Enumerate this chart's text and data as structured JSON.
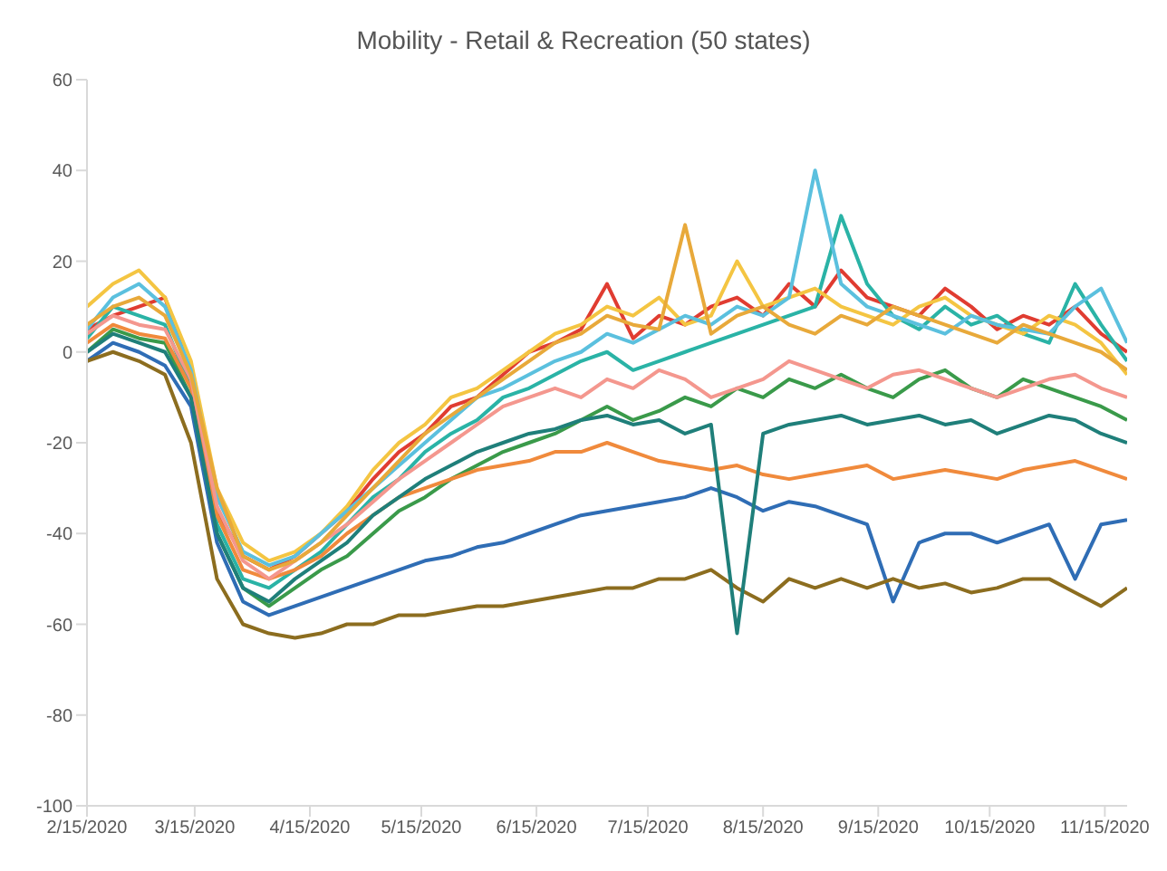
{
  "chart_data": {
    "type": "line",
    "title": "Mobility - Retail & Recreation (50 states)",
    "x": [
      "2020-02-15",
      "2020-02-22",
      "2020-02-29",
      "2020-03-07",
      "2020-03-14",
      "2020-03-21",
      "2020-03-28",
      "2020-04-04",
      "2020-04-11",
      "2020-04-18",
      "2020-04-25",
      "2020-05-02",
      "2020-05-09",
      "2020-05-16",
      "2020-05-23",
      "2020-05-30",
      "2020-06-06",
      "2020-06-13",
      "2020-06-20",
      "2020-06-27",
      "2020-07-04",
      "2020-07-11",
      "2020-07-18",
      "2020-07-25",
      "2020-08-01",
      "2020-08-08",
      "2020-08-15",
      "2020-08-22",
      "2020-08-29",
      "2020-09-05",
      "2020-09-12",
      "2020-09-19",
      "2020-09-26",
      "2020-10-03",
      "2020-10-10",
      "2020-10-17",
      "2020-10-24",
      "2020-10-31",
      "2020-11-07",
      "2020-11-14",
      "2020-11-21"
    ],
    "series": [
      {
        "color": "#e03c31",
        "values": [
          5,
          8,
          10,
          12,
          -5,
          -35,
          -45,
          -48,
          -45,
          -40,
          -35,
          -28,
          -22,
          -18,
          -12,
          -10,
          -5,
          0,
          2,
          5,
          15,
          3,
          8,
          6,
          10,
          12,
          8,
          15,
          10,
          18,
          12,
          10,
          8,
          14,
          10,
          5,
          8,
          6,
          10,
          4,
          0
        ]
      },
      {
        "color": "#2ab3a6",
        "values": [
          3,
          10,
          8,
          6,
          -8,
          -38,
          -50,
          -52,
          -48,
          -44,
          -38,
          -32,
          -28,
          -22,
          -18,
          -15,
          -10,
          -8,
          -5,
          -2,
          0,
          -4,
          -2,
          0,
          2,
          4,
          6,
          8,
          10,
          30,
          15,
          8,
          5,
          10,
          6,
          8,
          4,
          2,
          15,
          6,
          -2
        ]
      },
      {
        "color": "#f4c542",
        "values": [
          10,
          15,
          18,
          12,
          -2,
          -30,
          -42,
          -46,
          -44,
          -40,
          -34,
          -26,
          -20,
          -16,
          -10,
          -8,
          -4,
          0,
          4,
          6,
          10,
          8,
          12,
          6,
          8,
          20,
          10,
          12,
          14,
          10,
          8,
          6,
          10,
          12,
          8,
          6,
          4,
          8,
          6,
          2,
          -5
        ]
      },
      {
        "color": "#3a9a4a",
        "values": [
          0,
          5,
          3,
          2,
          -10,
          -40,
          -52,
          -56,
          -52,
          -48,
          -45,
          -40,
          -35,
          -32,
          -28,
          -25,
          -22,
          -20,
          -18,
          -15,
          -12,
          -15,
          -13,
          -10,
          -12,
          -8,
          -10,
          -6,
          -8,
          -5,
          -8,
          -10,
          -6,
          -4,
          -8,
          -10,
          -6,
          -8,
          -10,
          -12,
          -15
        ]
      },
      {
        "color": "#2f6db5",
        "values": [
          -2,
          2,
          0,
          -3,
          -12,
          -42,
          -55,
          -58,
          -56,
          -54,
          -52,
          -50,
          -48,
          -46,
          -45,
          -43,
          -42,
          -40,
          -38,
          -36,
          -35,
          -34,
          -33,
          -32,
          -30,
          -32,
          -35,
          -33,
          -34,
          -36,
          -38,
          -55,
          -42,
          -40,
          -40,
          -42,
          -40,
          -38,
          -50,
          -38,
          -37
        ]
      },
      {
        "color": "#8c6d1f",
        "values": [
          -2,
          0,
          -2,
          -5,
          -20,
          -50,
          -60,
          -62,
          -63,
          -62,
          -60,
          -60,
          -58,
          -58,
          -57,
          -56,
          -56,
          -55,
          -54,
          -53,
          -52,
          -52,
          -50,
          -50,
          -48,
          -52,
          -55,
          -50,
          -52,
          -50,
          -52,
          -50,
          -52,
          -51,
          -53,
          -52,
          -50,
          -50,
          -53,
          -56,
          -52
        ]
      },
      {
        "color": "#f08a3c",
        "values": [
          2,
          6,
          4,
          3,
          -8,
          -36,
          -48,
          -50,
          -48,
          -45,
          -40,
          -36,
          -32,
          -30,
          -28,
          -26,
          -25,
          -24,
          -22,
          -22,
          -20,
          -22,
          -24,
          -25,
          -26,
          -25,
          -27,
          -28,
          -27,
          -26,
          -25,
          -28,
          -27,
          -26,
          -27,
          -28,
          -26,
          -25,
          -24,
          -26,
          -28
        ]
      },
      {
        "color": "#1f7f7a",
        "values": [
          0,
          4,
          2,
          0,
          -10,
          -40,
          -52,
          -55,
          -50,
          -46,
          -42,
          -36,
          -32,
          -28,
          -25,
          -22,
          -20,
          -18,
          -17,
          -15,
          -14,
          -16,
          -15,
          -18,
          -16,
          -62,
          -18,
          -16,
          -15,
          -14,
          -16,
          -15,
          -14,
          -16,
          -15,
          -18,
          -16,
          -14,
          -15,
          -18,
          -20
        ]
      },
      {
        "color": "#5bc0de",
        "values": [
          5,
          12,
          15,
          10,
          -4,
          -32,
          -44,
          -47,
          -45,
          -40,
          -35,
          -30,
          -25,
          -20,
          -15,
          -10,
          -8,
          -5,
          -2,
          0,
          4,
          2,
          5,
          8,
          6,
          10,
          8,
          12,
          40,
          15,
          10,
          8,
          6,
          4,
          8,
          6,
          5,
          4,
          10,
          14,
          2
        ]
      },
      {
        "color": "#f4978e",
        "values": [
          4,
          8,
          6,
          5,
          -6,
          -34,
          -46,
          -50,
          -46,
          -42,
          -38,
          -33,
          -28,
          -24,
          -20,
          -16,
          -12,
          -10,
          -8,
          -10,
          -6,
          -8,
          -4,
          -6,
          -10,
          -8,
          -6,
          -2,
          -4,
          -6,
          -8,
          -5,
          -4,
          -6,
          -8,
          -10,
          -8,
          -6,
          -5,
          -8,
          -10
        ]
      },
      {
        "color": "#e8a93a",
        "values": [
          6,
          10,
          12,
          8,
          -5,
          -30,
          -45,
          -48,
          -46,
          -42,
          -36,
          -30,
          -24,
          -18,
          -14,
          -10,
          -6,
          -2,
          2,
          4,
          8,
          6,
          5,
          28,
          4,
          8,
          10,
          6,
          4,
          8,
          6,
          10,
          8,
          6,
          4,
          2,
          6,
          4,
          2,
          0,
          -4
        ]
      }
    ],
    "xlim": [
      "2020-02-15",
      "2020-11-21"
    ],
    "xticks": [
      {
        "value": "2020-02-15",
        "label": "2/15/2020"
      },
      {
        "value": "2020-03-15",
        "label": "3/15/2020"
      },
      {
        "value": "2020-04-15",
        "label": "4/15/2020"
      },
      {
        "value": "2020-05-15",
        "label": "5/15/2020"
      },
      {
        "value": "2020-06-15",
        "label": "6/15/2020"
      },
      {
        "value": "2020-07-15",
        "label": "7/15/2020"
      },
      {
        "value": "2020-08-15",
        "label": "8/15/2020"
      },
      {
        "value": "2020-09-15",
        "label": "9/15/2020"
      },
      {
        "value": "2020-10-15",
        "label": "10/15/2020"
      },
      {
        "value": "2020-11-15",
        "label": "11/15/2020"
      }
    ],
    "ylim": [
      -100,
      60
    ],
    "yticks": [
      -100,
      -80,
      -60,
      -40,
      -20,
      0,
      20,
      40,
      60
    ]
  }
}
